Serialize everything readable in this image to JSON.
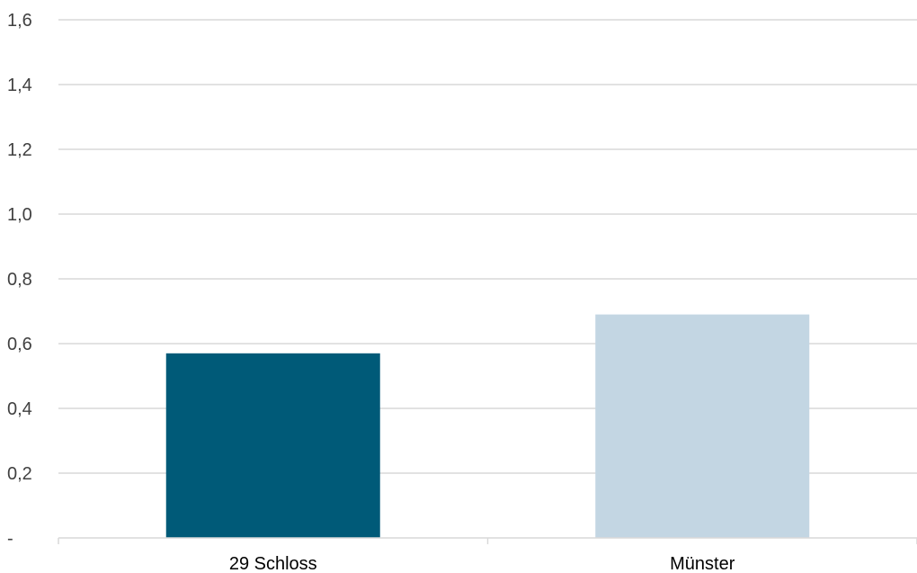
{
  "chart_data": {
    "type": "bar",
    "categories": [
      "29 Schloss",
      "Münster"
    ],
    "values": [
      0.57,
      0.69
    ],
    "colors": [
      "#005a78",
      "#c3d6e3"
    ],
    "ylim": [
      0,
      1.6
    ],
    "yticks": [
      0,
      0.2,
      0.4,
      0.6,
      0.8,
      1.0,
      1.2,
      1.4,
      1.6
    ],
    "ytick_labels": [
      "-",
      "0,2",
      "0,4",
      "0,6",
      "0,8",
      "1,0",
      "1,2",
      "1,4",
      "1,6"
    ],
    "grid": true,
    "gridline_color": "#d9d9d9",
    "legend": false
  }
}
